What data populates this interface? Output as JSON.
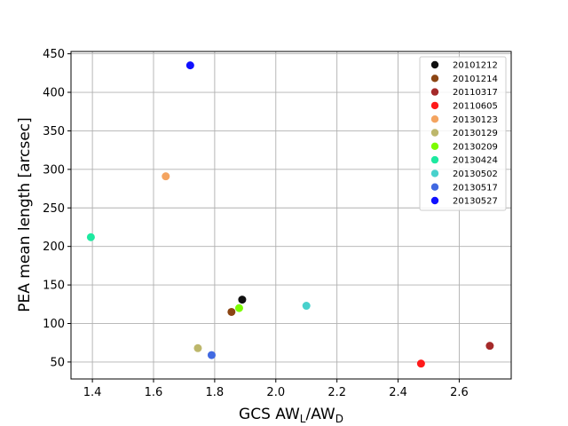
{
  "chart_data": {
    "type": "scatter",
    "xlabel": {
      "main": "GCS AW",
      "sub1": "L",
      "mid": "/AW",
      "sub2": "D"
    },
    "ylabel": "PEA mean length [arcsec]",
    "xlim": [
      1.33,
      2.77
    ],
    "ylim": [
      28,
      453
    ],
    "x_ticks": [
      1.4,
      1.6,
      1.8,
      2.0,
      2.2,
      2.4,
      2.6
    ],
    "x_tick_labels": [
      "1.4",
      "1.6",
      "1.8",
      "2.0",
      "2.2",
      "2.4",
      "2.6"
    ],
    "y_ticks": [
      50,
      100,
      150,
      200,
      250,
      300,
      350,
      400,
      450
    ],
    "y_tick_labels": [
      "50",
      "100",
      "150",
      "200",
      "250",
      "300",
      "350",
      "400",
      "450"
    ],
    "grid": true,
    "legend_position": "top-right",
    "series": [
      {
        "name": "20101212",
        "color": "#111111",
        "x": 1.89,
        "y": 131
      },
      {
        "name": "20101214",
        "color": "#8b4513",
        "x": 1.855,
        "y": 115
      },
      {
        "name": "20110317",
        "color": "#a52a2a",
        "x": 2.7,
        "y": 71
      },
      {
        "name": "20110605",
        "color": "#ff1a1a",
        "x": 2.475,
        "y": 48
      },
      {
        "name": "20130123",
        "color": "#f4a460",
        "x": 1.64,
        "y": 291
      },
      {
        "name": "20130129",
        "color": "#bdb76b",
        "x": 1.745,
        "y": 68
      },
      {
        "name": "20130209",
        "color": "#7cfc00",
        "x": 1.88,
        "y": 120
      },
      {
        "name": "20130424",
        "color": "#1de9a0",
        "x": 1.395,
        "y": 212
      },
      {
        "name": "20130502",
        "color": "#48d1cc",
        "x": 2.1,
        "y": 123
      },
      {
        "name": "20130517",
        "color": "#4169e1",
        "x": 1.79,
        "y": 59
      },
      {
        "name": "20130527",
        "color": "#1010ff",
        "x": 1.72,
        "y": 435
      }
    ]
  }
}
